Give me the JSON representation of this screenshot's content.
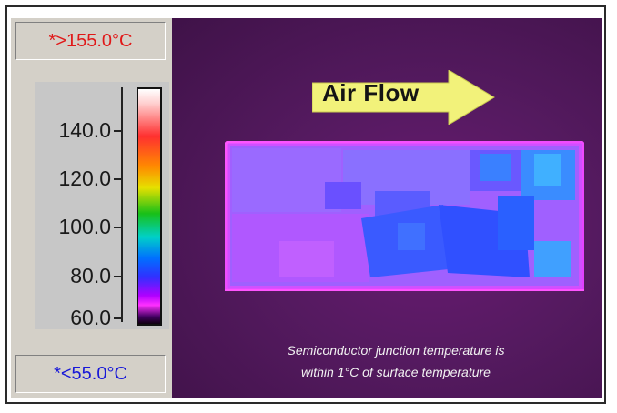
{
  "scale": {
    "max_label": "*>155.0°C",
    "min_label": "*<55.0°C",
    "ticks": [
      "140.0",
      "120.0",
      "100.0",
      "80.0",
      "60.0"
    ]
  },
  "image": {
    "arrow_label": "Air Flow",
    "caption_line1": "Semiconductor junction temperature is",
    "caption_line2": "within 1°C of surface temperature"
  },
  "colors": {
    "max_text": "#e01818",
    "min_text": "#1818d8",
    "arrow_fill": "#f2f27a"
  }
}
